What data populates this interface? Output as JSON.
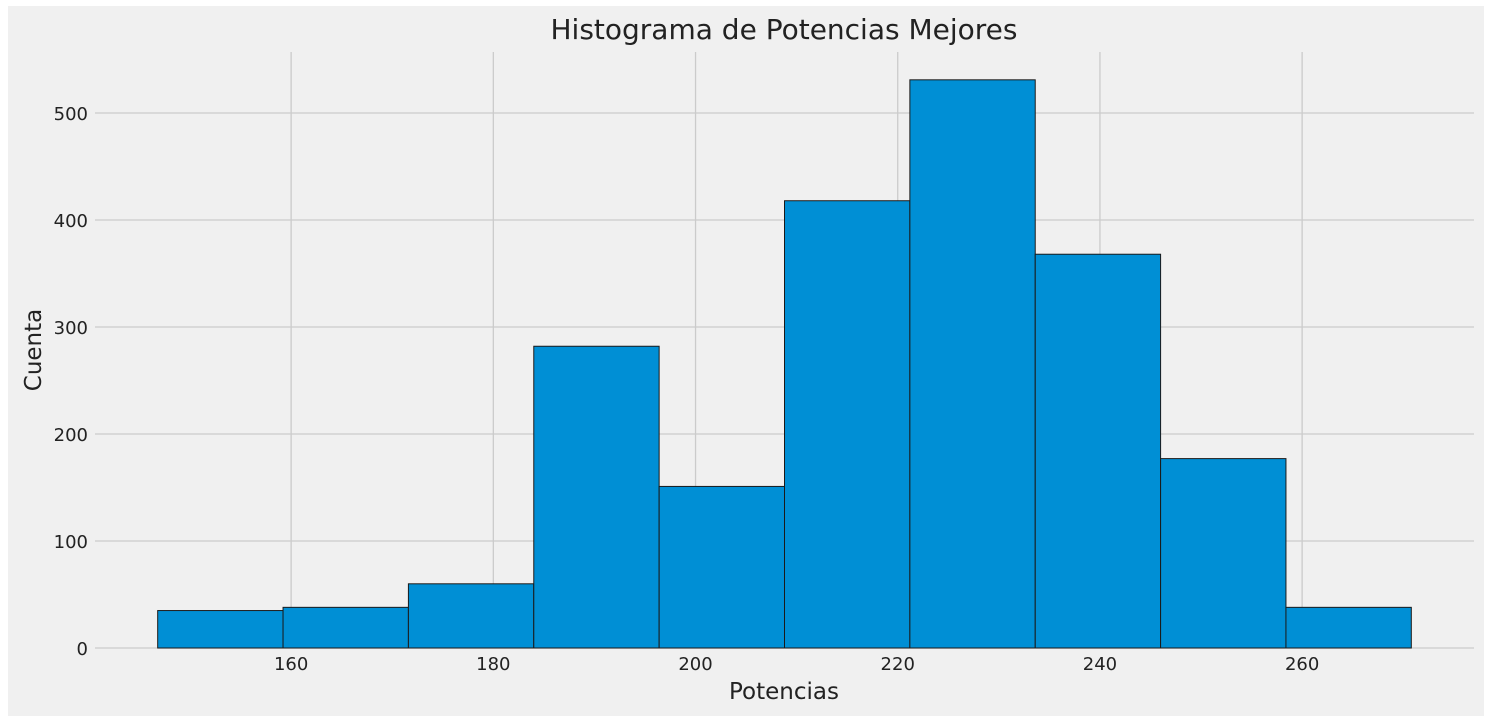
{
  "chart_data": {
    "type": "bar",
    "title": "Histograma de Potencias Mejores",
    "xlabel": "Potencias",
    "ylabel": "Cuenta",
    "bins": [
      {
        "start": 146.8,
        "end": 159.2,
        "count": 35
      },
      {
        "start": 159.2,
        "end": 171.6,
        "count": 38
      },
      {
        "start": 171.6,
        "end": 184.0,
        "count": 60
      },
      {
        "start": 184.0,
        "end": 196.4,
        "count": 282
      },
      {
        "start": 196.4,
        "end": 208.8,
        "count": 151
      },
      {
        "start": 208.8,
        "end": 221.2,
        "count": 418
      },
      {
        "start": 221.2,
        "end": 233.6,
        "count": 531
      },
      {
        "start": 233.6,
        "end": 246.0,
        "count": 368
      },
      {
        "start": 246.0,
        "end": 258.4,
        "count": 177
      },
      {
        "start": 258.4,
        "end": 270.8,
        "count": 38
      }
    ],
    "xticks": [
      160,
      180,
      200,
      220,
      240,
      260
    ],
    "yticks": [
      0,
      100,
      200,
      300,
      400,
      500
    ],
    "xlim": [
      140.6,
      277.0
    ],
    "ylim": [
      0,
      557
    ],
    "grid": true,
    "colors": {
      "bar_fill": "#008fd5",
      "bar_edge": "#1a1a1a",
      "background": "#f0f0f0",
      "grid": "#cbcbcb",
      "text": "#222222"
    }
  }
}
